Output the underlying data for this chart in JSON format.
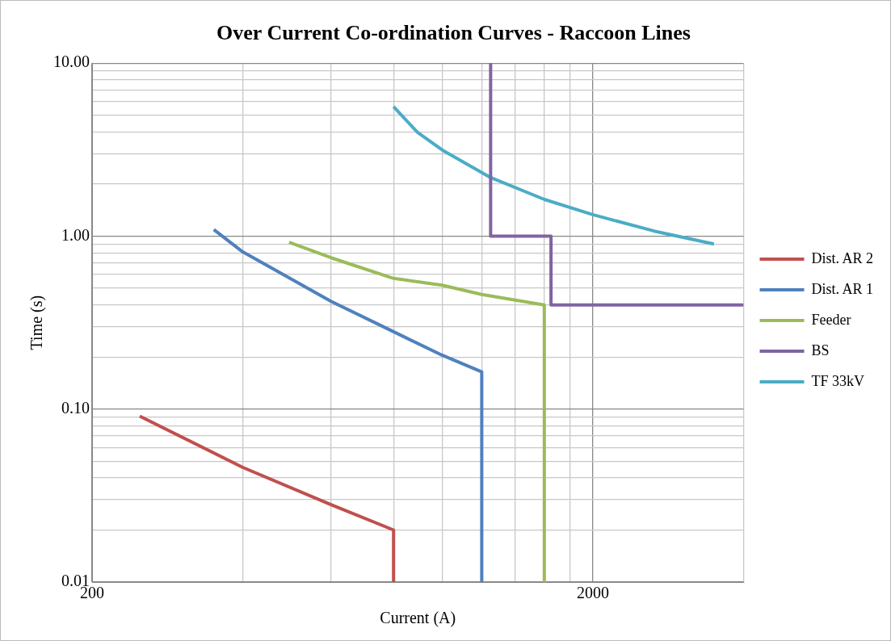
{
  "chart_data": {
    "type": "line",
    "title": "Over Current Co-ordination Curves - Raccoon Lines",
    "xlabel": "Current (A)",
    "ylabel": "Time (s)",
    "log": "xy",
    "grid": true,
    "legend": "right",
    "marker": "none",
    "xlim": [
      200,
      4000
    ],
    "ylim": [
      0.01,
      10
    ],
    "xticks": [
      200,
      {
        "value": 400,
        "label": null
      },
      {
        "value": 600,
        "label": null
      },
      {
        "value": 800,
        "label": null
      },
      {
        "value": 1000,
        "label": null
      },
      {
        "value": 1200,
        "label": null
      },
      {
        "value": 1400,
        "label": null
      },
      {
        "value": 1600,
        "label": null
      },
      {
        "value": 1800,
        "label": null
      },
      2000,
      {
        "value": 4000,
        "label": null
      }
    ],
    "yticks": [
      {
        "value": 0.01,
        "label": "0.01"
      },
      {
        "value": 0.02,
        "label": null
      },
      {
        "value": 0.03,
        "label": null
      },
      {
        "value": 0.04,
        "label": null
      },
      {
        "value": 0.05,
        "label": null
      },
      {
        "value": 0.06,
        "label": null
      },
      {
        "value": 0.07,
        "label": null
      },
      {
        "value": 0.08,
        "label": null
      },
      {
        "value": 0.09,
        "label": null
      },
      {
        "value": 0.1,
        "label": "0.10"
      },
      {
        "value": 0.2,
        "label": null
      },
      {
        "value": 0.3,
        "label": null
      },
      {
        "value": 0.4,
        "label": null
      },
      {
        "value": 0.5,
        "label": null
      },
      {
        "value": 0.6,
        "label": null
      },
      {
        "value": 0.7,
        "label": null
      },
      {
        "value": 0.8,
        "label": null
      },
      {
        "value": 0.9,
        "label": null
      },
      {
        "value": 1,
        "label": "1.00"
      },
      {
        "value": 2,
        "label": null
      },
      {
        "value": 3,
        "label": null
      },
      {
        "value": 4,
        "label": null
      },
      {
        "value": 5,
        "label": null
      },
      {
        "value": 6,
        "label": null
      },
      {
        "value": 7,
        "label": null
      },
      {
        "value": 8,
        "label": null
      },
      {
        "value": 9,
        "label": null
      },
      {
        "value": 10,
        "label": "10.00"
      }
    ],
    "series": [
      {
        "name": "Dist. AR 2",
        "color": "#c0504d",
        "x": [
          249,
          400,
          600,
          800,
          800
        ],
        "values": [
          0.091,
          0.046,
          0.028,
          0.02,
          0.01
        ]
      },
      {
        "name": "Dist. AR 1",
        "color": "#4f81bd",
        "x": [
          350,
          400,
          600,
          800,
          1000,
          1200,
          1200
        ],
        "values": [
          1.09,
          0.81,
          0.42,
          0.28,
          0.205,
          0.164,
          0.01
        ]
      },
      {
        "name": "Feeder",
        "color": "#9bbb59",
        "x": [
          495,
          600,
          800,
          1000,
          1200,
          1600,
          1600
        ],
        "values": [
          0.92,
          0.75,
          0.57,
          0.52,
          0.46,
          0.4,
          0.01
        ]
      },
      {
        "name": "BS",
        "color": "#8064a2",
        "x": [
          1250,
          1250,
          1650,
          1650,
          4000
        ],
        "values": [
          10,
          1,
          1,
          0.4,
          0.4
        ]
      },
      {
        "name": "TF 33kV",
        "color": "#4bacc6",
        "x": [
          800,
          893,
          1000,
          1250,
          1600,
          2000,
          2650,
          3490
        ],
        "values": [
          5.6,
          3.98,
          3.15,
          2.18,
          1.63,
          1.33,
          1.07,
          0.9
        ]
      }
    ]
  }
}
